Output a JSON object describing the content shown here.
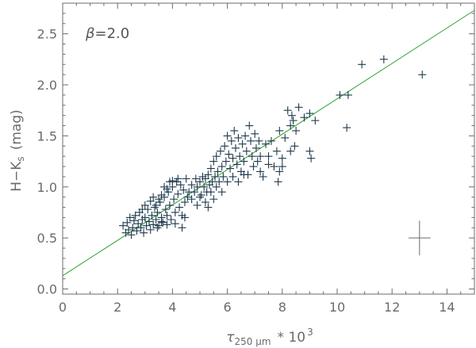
{
  "chart_data": {
    "type": "scatter",
    "xlabel": {
      "main": "τ",
      "sub": "250 μm",
      "suffix": "* 10",
      "sup": "3"
    },
    "ylabel": {
      "main": "H−K",
      "sub": "s",
      "suffix": "(mag)"
    },
    "annotation": {
      "symbol": "β",
      "text": "=2.0"
    },
    "xlim": [
      0,
      15
    ],
    "ylim": [
      -0.05,
      2.8
    ],
    "x_ticks": [
      0,
      2,
      4,
      6,
      8,
      10,
      12,
      14
    ],
    "x_tick_labels": [
      "0",
      "2",
      "4",
      "6",
      "8",
      "10",
      "12",
      "14"
    ],
    "y_ticks": [
      0.0,
      0.5,
      1.0,
      1.5,
      2.0,
      2.5
    ],
    "y_tick_labels": [
      "0.0",
      "0.5",
      "1.0",
      "1.5",
      "2.0",
      "2.5"
    ],
    "grid": false,
    "marker": "+",
    "colors": {
      "points": "#1f3a4d",
      "fit_line": "#2ca02c",
      "axes": "#6b6b6b",
      "error_bar": "#6b6b6b"
    },
    "fit_line": {
      "x": [
        0,
        15
      ],
      "y": [
        0.13,
        2.73
      ]
    },
    "error_bar": {
      "x": 13.0,
      "y": 0.5,
      "xerr": 0.4,
      "yerr": 0.17
    },
    "series": [
      {
        "points": [
          [
            2.2,
            0.62
          ],
          [
            2.3,
            0.55
          ],
          [
            2.35,
            0.65
          ],
          [
            2.4,
            0.58
          ],
          [
            2.45,
            0.7
          ],
          [
            2.5,
            0.53
          ],
          [
            2.55,
            0.6
          ],
          [
            2.6,
            0.67
          ],
          [
            2.65,
            0.72
          ],
          [
            2.7,
            0.57
          ],
          [
            2.75,
            0.64
          ],
          [
            2.8,
            0.75
          ],
          [
            2.85,
            0.6
          ],
          [
            2.9,
            0.68
          ],
          [
            2.95,
            0.55
          ],
          [
            3.0,
            0.7
          ],
          [
            3.05,
            0.62
          ],
          [
            3.1,
            0.78
          ],
          [
            3.15,
            0.66
          ],
          [
            3.2,
            0.58
          ],
          [
            3.25,
            0.72
          ],
          [
            3.3,
            0.63
          ],
          [
            3.35,
            0.8
          ],
          [
            3.4,
            0.68
          ],
          [
            3.45,
            0.75
          ],
          [
            3.5,
            0.62
          ],
          [
            3.55,
            0.85
          ],
          [
            3.6,
            0.7
          ],
          [
            3.65,
            0.65
          ],
          [
            3.7,
            0.9
          ],
          [
            3.75,
            0.78
          ],
          [
            3.8,
            0.72
          ],
          [
            3.85,
            0.95
          ],
          [
            3.9,
            0.82
          ],
          [
            3.95,
            0.68
          ],
          [
            4.0,
            1.0
          ],
          [
            4.05,
            0.88
          ],
          [
            4.1,
            0.75
          ],
          [
            4.15,
            1.05
          ],
          [
            4.2,
            0.93
          ],
          [
            4.25,
            0.8
          ],
          [
            4.3,
            1.02
          ],
          [
            4.35,
            0.72
          ],
          [
            4.4,
            0.97
          ],
          [
            4.45,
            0.85
          ],
          [
            4.5,
            1.08
          ],
          [
            4.55,
            0.9
          ],
          [
            3.9,
            1.05
          ],
          [
            3.8,
            0.98
          ],
          [
            3.6,
            0.92
          ],
          [
            3.5,
            0.88
          ],
          [
            3.4,
            0.82
          ],
          [
            3.3,
            0.9
          ],
          [
            3.2,
            0.86
          ],
          [
            3.0,
            0.82
          ],
          [
            2.9,
            0.78
          ],
          [
            3.7,
            1.0
          ],
          [
            4.0,
            1.06
          ],
          [
            4.2,
            1.08
          ],
          [
            4.35,
            0.6
          ],
          [
            4.1,
            0.64
          ],
          [
            3.8,
            0.63
          ],
          [
            3.6,
            0.66
          ],
          [
            3.45,
            0.6
          ],
          [
            4.45,
            0.7
          ],
          [
            4.6,
            0.95
          ],
          [
            4.7,
            1.02
          ],
          [
            4.8,
            0.95
          ],
          [
            4.85,
            1.08
          ],
          [
            4.9,
            1.0
          ],
          [
            5.0,
            1.05
          ],
          [
            5.05,
            0.92
          ],
          [
            5.1,
            1.1
          ],
          [
            5.15,
            1.0
          ],
          [
            5.2,
            1.08
          ],
          [
            5.25,
            0.95
          ],
          [
            5.3,
            1.12
          ],
          [
            5.35,
            1.02
          ],
          [
            5.4,
            1.18
          ],
          [
            5.45,
            1.05
          ],
          [
            5.5,
            1.25
          ],
          [
            5.55,
            1.1
          ],
          [
            5.6,
            1.3
          ],
          [
            5.65,
            1.15
          ],
          [
            5.7,
            1.05
          ],
          [
            5.75,
            1.35
          ],
          [
            5.8,
            1.2
          ],
          [
            5.85,
            1.1
          ],
          [
            5.9,
            1.4
          ],
          [
            5.95,
            1.25
          ],
          [
            6.0,
            1.5
          ],
          [
            6.05,
            1.32
          ],
          [
            6.1,
            1.18
          ],
          [
            6.15,
            1.45
          ],
          [
            6.2,
            1.28
          ],
          [
            6.25,
            1.55
          ],
          [
            6.3,
            1.38
          ],
          [
            6.35,
            1.22
          ],
          [
            6.4,
            1.48
          ],
          [
            6.45,
            1.3
          ],
          [
            6.5,
            1.15
          ],
          [
            6.55,
            1.42
          ],
          [
            6.6,
            1.25
          ],
          [
            6.65,
            1.5
          ],
          [
            6.7,
            1.35
          ],
          [
            6.75,
            1.12
          ],
          [
            6.8,
            1.6
          ],
          [
            6.85,
            1.45
          ],
          [
            6.9,
            1.3
          ],
          [
            6.95,
            1.2
          ],
          [
            7.0,
            1.52
          ],
          [
            7.05,
            1.38
          ],
          [
            7.1,
            1.25
          ],
          [
            7.15,
            1.45
          ],
          [
            7.2,
            1.3
          ],
          [
            7.3,
            1.1
          ],
          [
            7.4,
            1.42
          ],
          [
            7.5,
            1.3
          ],
          [
            7.6,
            1.45
          ],
          [
            7.7,
            1.2
          ],
          [
            7.8,
            1.35
          ],
          [
            7.9,
            1.15
          ],
          [
            8.0,
            1.28
          ],
          [
            7.85,
            1.05
          ],
          [
            8.0,
            1.2
          ],
          [
            7.5,
            1.22
          ],
          [
            7.2,
            1.15
          ],
          [
            6.0,
            1.05
          ],
          [
            5.8,
            0.95
          ],
          [
            5.5,
            0.88
          ],
          [
            5.2,
            0.85
          ],
          [
            5.0,
            0.9
          ],
          [
            6.2,
            1.1
          ],
          [
            6.6,
            1.12
          ],
          [
            6.4,
            1.05
          ],
          [
            5.4,
            0.95
          ],
          [
            5.6,
            1.0
          ],
          [
            4.9,
            0.82
          ],
          [
            4.7,
            0.88
          ],
          [
            5.3,
            0.8
          ],
          [
            7.9,
            1.55
          ],
          [
            8.1,
            1.48
          ],
          [
            8.2,
            1.75
          ],
          [
            8.3,
            1.6
          ],
          [
            8.35,
            1.7
          ],
          [
            8.4,
            1.65
          ],
          [
            8.5,
            1.55
          ],
          [
            8.45,
            1.4
          ],
          [
            8.3,
            1.35
          ],
          [
            8.6,
            1.78
          ],
          [
            8.8,
            1.68
          ],
          [
            9.0,
            1.72
          ],
          [
            9.2,
            1.65
          ],
          [
            9.0,
            1.35
          ],
          [
            9.05,
            1.28
          ],
          [
            10.1,
            1.9
          ],
          [
            10.4,
            1.9
          ],
          [
            10.35,
            1.58
          ],
          [
            10.9,
            2.2
          ],
          [
            11.7,
            2.25
          ],
          [
            13.1,
            2.1
          ]
        ]
      }
    ]
  }
}
